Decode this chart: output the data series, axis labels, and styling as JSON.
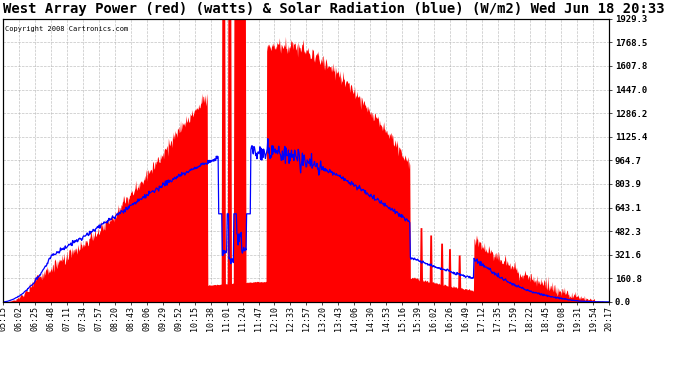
{
  "title": "West Array Power (red) (watts) & Solar Radiation (blue) (W/m2) Wed Jun 18 20:33",
  "copyright": "Copyright 2008 Cartronics.com",
  "background_color": "#ffffff",
  "plot_bg_color": "#ffffff",
  "grid_color": "#aaaaaa",
  "yticks": [
    0.0,
    160.8,
    321.6,
    482.3,
    643.1,
    803.9,
    964.7,
    1125.4,
    1286.2,
    1447.0,
    1607.8,
    1768.5,
    1929.3
  ],
  "ymax": 1929.3,
  "ymin": 0.0,
  "red_fill_color": "#ff0000",
  "blue_line_color": "#0000ff",
  "title_fontsize": 10,
  "tick_label_fontsize": 6,
  "x_tick_labels": [
    "05:15",
    "06:02",
    "06:25",
    "06:48",
    "07:11",
    "07:34",
    "07:57",
    "08:20",
    "08:43",
    "09:06",
    "09:29",
    "09:52",
    "10:15",
    "10:38",
    "11:01",
    "11:24",
    "11:47",
    "12:10",
    "12:33",
    "12:57",
    "13:20",
    "13:43",
    "14:06",
    "14:30",
    "14:53",
    "15:16",
    "15:39",
    "16:02",
    "16:26",
    "16:49",
    "17:12",
    "17:35",
    "17:59",
    "18:22",
    "18:45",
    "19:08",
    "19:31",
    "19:54",
    "20:17"
  ]
}
